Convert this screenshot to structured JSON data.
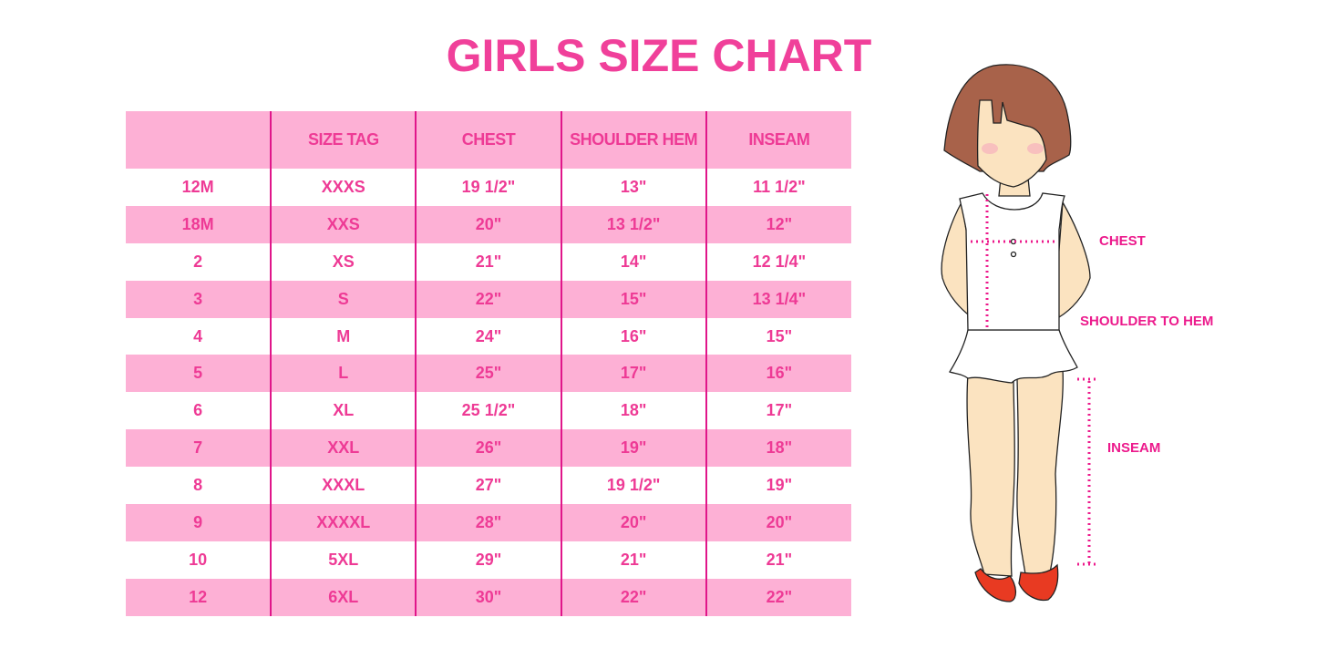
{
  "title": "GIRLS SIZE CHART",
  "table": {
    "headers": [
      "",
      "SIZE TAG",
      "CHEST",
      "SHOULDER HEM",
      "INSEAM"
    ],
    "rows": [
      [
        "12M",
        "XXXS",
        "19 1/2\"",
        "13\"",
        "11 1/2\""
      ],
      [
        "18M",
        "XXS",
        "20\"",
        "13 1/2\"",
        "12\""
      ],
      [
        "2",
        "XS",
        "21\"",
        "14\"",
        "12 1/4\""
      ],
      [
        "3",
        "S",
        "22\"",
        "15\"",
        "13 1/4\""
      ],
      [
        "4",
        "M",
        "24\"",
        "16\"",
        "15\""
      ],
      [
        "5",
        "L",
        "25\"",
        "17\"",
        "16\""
      ],
      [
        "6",
        "XL",
        "25 1/2\"",
        "18\"",
        "17\""
      ],
      [
        "7",
        "XXL",
        "26\"",
        "19\"",
        "18\""
      ],
      [
        "8",
        "XXXL",
        "27\"",
        "19 1/2\"",
        "19\""
      ],
      [
        "9",
        "XXXXL",
        "28\"",
        "20\"",
        "20\""
      ],
      [
        "10",
        "5XL",
        "29\"",
        "21\"",
        "21\""
      ],
      [
        "12",
        "6XL",
        "30\"",
        "22\"",
        "22\""
      ]
    ]
  },
  "illustration": {
    "labels": {
      "chest": "CHEST",
      "shoulder_to_hem": "SHOULDER TO HEM",
      "inseam": "INSEAM"
    }
  },
  "colors": {
    "accent": "#f0409a",
    "row_pink": "#fdb0d5",
    "divider": "#e0168a",
    "measure": "#ec1a8c"
  }
}
